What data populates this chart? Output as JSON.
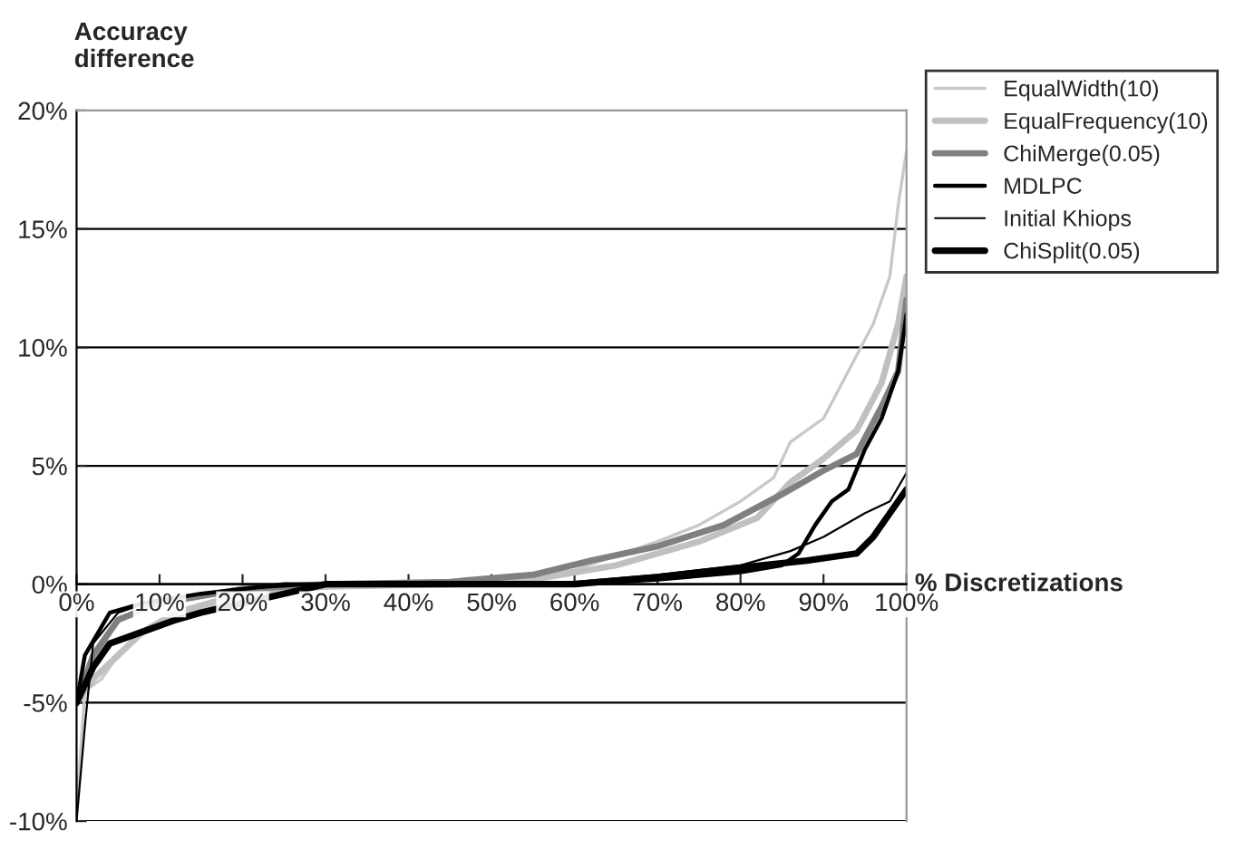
{
  "chart_data": {
    "type": "line",
    "ylabel": "Accuracy difference",
    "xlabel": "% Discretizations",
    "xlim": [
      0,
      100
    ],
    "xticks": [
      {
        "value": 0,
        "label": "0%"
      },
      {
        "value": 10,
        "label": "10%"
      },
      {
        "value": 20,
        "label": "20%"
      },
      {
        "value": 30,
        "label": "30%"
      },
      {
        "value": 40,
        "label": "40%"
      },
      {
        "value": 50,
        "label": "50%"
      },
      {
        "value": 60,
        "label": "60%"
      },
      {
        "value": 70,
        "label": "70%"
      },
      {
        "value": 80,
        "label": "80%"
      },
      {
        "value": 90,
        "label": "90%"
      },
      {
        "value": 100,
        "label": "100%"
      }
    ],
    "ylim": [
      -10,
      20
    ],
    "yticks": [
      {
        "value": -10,
        "label": "-10%"
      },
      {
        "value": -5,
        "label": "-5%"
      },
      {
        "value": 0,
        "label": "0%"
      },
      {
        "value": 5,
        "label": "5%"
      },
      {
        "value": 10,
        "label": "10%"
      },
      {
        "value": 15,
        "label": "15%"
      },
      {
        "value": 20,
        "label": "20%"
      }
    ],
    "grid": "y",
    "legend": "top right",
    "marker": "none",
    "line_style": "solid",
    "series": [
      {
        "name": "EqualWidth(10)",
        "color": "#c8c8c8",
        "x": [
          0,
          1,
          3,
          5,
          8,
          12,
          24,
          30,
          40,
          50,
          60,
          70,
          75,
          80,
          84,
          86,
          90,
          93,
          96,
          98,
          99,
          100
        ],
        "values": [
          -9.5,
          -4.5,
          -4,
          -3,
          -2,
          -1.3,
          -0.3,
          -0.1,
          0,
          0.1,
          0.6,
          1.8,
          2.5,
          3.5,
          4.5,
          6,
          7,
          9,
          11,
          13,
          16,
          18.3
        ]
      },
      {
        "name": "EqualFrequency(10)",
        "color": "#c0c0c0",
        "x": [
          0,
          2,
          5,
          8,
          12,
          20,
          30,
          45,
          55,
          65,
          75,
          82,
          86,
          90,
          94,
          97,
          99,
          100
        ],
        "values": [
          -5,
          -4,
          -3,
          -2,
          -1.2,
          -0.4,
          -0.1,
          0,
          0.2,
          0.8,
          1.8,
          2.8,
          4.3,
          5.3,
          6.5,
          8.5,
          11,
          13
        ]
      },
      {
        "name": "ChiMerge(0.05)",
        "color": "#808080",
        "x": [
          0,
          2,
          5,
          10,
          20,
          30,
          45,
          55,
          62,
          70,
          78,
          85,
          90,
          94,
          97,
          99,
          100
        ],
        "values": [
          -5,
          -3,
          -1.5,
          -0.8,
          -0.2,
          0,
          0.1,
          0.4,
          1,
          1.6,
          2.5,
          3.8,
          4.8,
          5.5,
          7.5,
          9,
          12
        ]
      },
      {
        "name": "MDLPC",
        "color": "#000000",
        "x": [
          0,
          1,
          4,
          8,
          15,
          25,
          60,
          70,
          80,
          85,
          87,
          89,
          91,
          93,
          95,
          97,
          99,
          100
        ],
        "values": [
          -5,
          -3,
          -1.2,
          -0.8,
          -0.4,
          0,
          0,
          0.2,
          0.5,
          0.8,
          1.3,
          2.5,
          3.5,
          4,
          5.7,
          7,
          9,
          11.4
        ]
      },
      {
        "name": "Initial Khiops",
        "color": "#000000",
        "x": [
          0,
          1,
          2,
          5,
          10,
          20,
          30,
          60,
          70,
          80,
          86,
          90,
          95,
          98,
          100
        ],
        "values": [
          -10,
          -6,
          -2.5,
          -1.2,
          -0.6,
          -0.2,
          0,
          0.1,
          0.4,
          0.8,
          1.4,
          2,
          3,
          3.5,
          4.7
        ]
      },
      {
        "name": "ChiSplit(0.05)",
        "color": "#000000",
        "x": [
          0,
          2,
          4,
          8,
          12,
          15,
          25,
          30,
          60,
          70,
          80,
          88,
          94,
          96,
          98,
          100
        ],
        "values": [
          -5,
          -3.5,
          -2.5,
          -2,
          -1.5,
          -1.2,
          -0.4,
          0,
          0,
          0.3,
          0.7,
          1,
          1.3,
          2,
          3,
          4
        ]
      }
    ]
  }
}
